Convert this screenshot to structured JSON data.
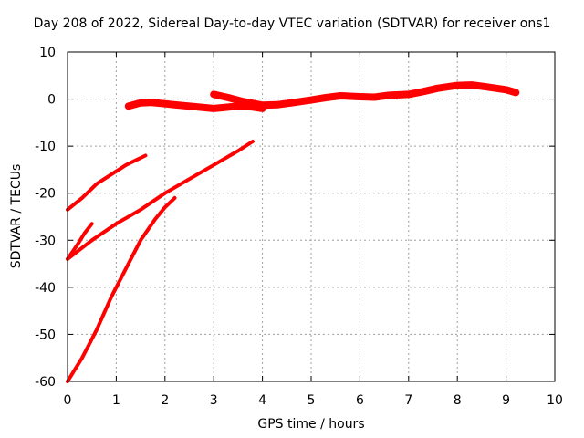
{
  "chart_data": {
    "type": "line",
    "title": "Day 208 of 2022, Sidereal Day-to-day VTEC variation (SDTVAR) for receiver ons1",
    "xlabel": "GPS time / hours",
    "ylabel": "SDTVAR / TECUs",
    "xlim": [
      0,
      10
    ],
    "ylim": [
      -60,
      10
    ],
    "xticks": [
      0,
      1,
      2,
      3,
      4,
      5,
      6,
      7,
      8,
      9,
      10
    ],
    "yticks": [
      -60,
      -50,
      -40,
      -30,
      -20,
      -10,
      0,
      10
    ],
    "grid": true,
    "series_color": "#ff0000",
    "series": [
      {
        "name": "segment-1",
        "x": [
          0.0,
          0.3,
          0.6,
          0.9,
          1.2,
          1.4,
          1.6
        ],
        "y": [
          -23.5,
          -21.0,
          -18.0,
          -16.0,
          -14.0,
          -13.0,
          -12.0
        ],
        "width": 4
      },
      {
        "name": "segment-2",
        "x": [
          0.0,
          0.5,
          1.0,
          1.5,
          2.0,
          2.5,
          3.0,
          3.5,
          3.8
        ],
        "y": [
          -34.0,
          -30.0,
          -26.5,
          -23.5,
          -20.0,
          -17.0,
          -14.0,
          -11.0,
          -9.0
        ],
        "width": 4
      },
      {
        "name": "segment-3",
        "x": [
          0.0,
          0.2,
          0.35,
          0.5
        ],
        "y": [
          -34.0,
          -31.0,
          -28.5,
          -26.5
        ],
        "width": 4
      },
      {
        "name": "segment-4",
        "x": [
          0.0,
          0.3,
          0.6,
          0.9,
          1.2,
          1.5,
          1.8,
          2.0,
          2.2
        ],
        "y": [
          -60.0,
          -55.0,
          -49.0,
          -42.0,
          -36.0,
          -30.0,
          -25.5,
          -23.0,
          -21.0
        ],
        "width": 4
      },
      {
        "name": "segment-5",
        "x": [
          1.25,
          1.5,
          1.7,
          2.0,
          2.2,
          2.5,
          2.8,
          3.0,
          3.2,
          3.5,
          3.8,
          4.0
        ],
        "y": [
          -1.5,
          -0.8,
          -0.7,
          -1.0,
          -1.2,
          -1.5,
          -1.8,
          -2.0,
          -1.8,
          -1.5,
          -1.7,
          -2.0
        ],
        "width": 8
      },
      {
        "name": "segment-6",
        "x": [
          3.0,
          3.3,
          3.6,
          4.0,
          4.3,
          4.6,
          5.0,
          5.3,
          5.6,
          6.0,
          6.3,
          6.6,
          7.0,
          7.3,
          7.6,
          8.0,
          8.3,
          8.6,
          9.0,
          9.2
        ],
        "y": [
          1.0,
          0.3,
          -0.5,
          -1.3,
          -1.2,
          -0.8,
          -0.2,
          0.3,
          0.7,
          0.5,
          0.4,
          0.8,
          1.0,
          1.6,
          2.3,
          2.9,
          3.0,
          2.6,
          2.0,
          1.4
        ],
        "width": 8
      }
    ]
  }
}
